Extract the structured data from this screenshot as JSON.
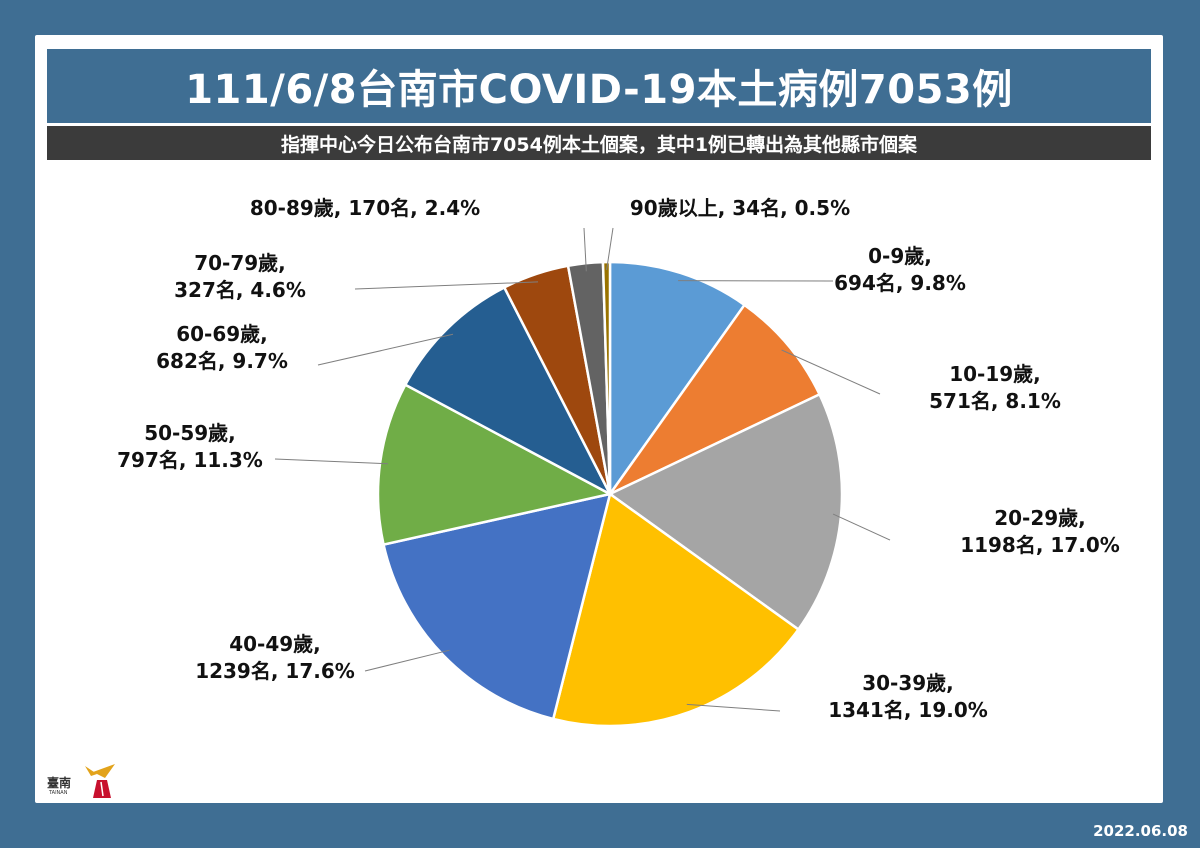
{
  "header": {
    "title": "111/6/8台南市COVID-19本土病例7053例",
    "subtitle": "指揮中心今日公布台南市7054例本土個案，其中1例已轉出為其他縣市個案"
  },
  "logo": {
    "text": "臺南",
    "sub": "TAINAN"
  },
  "footer": {
    "date": "2022.06.08"
  },
  "chart_data": {
    "type": "pie",
    "start_angle": "12 o'clock, clockwise",
    "slices": [
      {
        "label": "0-9歲",
        "count_text": "694名",
        "pct_text": "9.8%",
        "value": 694,
        "color": "#5b9bd5"
      },
      {
        "label": "10-19歲",
        "count_text": "571名",
        "pct_text": "8.1%",
        "value": 571,
        "color": "#ed7d31"
      },
      {
        "label": "20-29歲",
        "count_text": "1198名",
        "pct_text": "17.0%",
        "value": 1198,
        "color": "#a5a5a5"
      },
      {
        "label": "30-39歲",
        "count_text": "1341名",
        "pct_text": "19.0%",
        "value": 1341,
        "color": "#ffc000"
      },
      {
        "label": "40-49歲",
        "count_text": "1239名",
        "pct_text": "17.6%",
        "value": 1239,
        "color": "#4472c4"
      },
      {
        "label": "50-59歲",
        "count_text": "797名",
        "pct_text": "11.3%",
        "value": 797,
        "color": "#70ad47"
      },
      {
        "label": "60-69歲",
        "count_text": "682名",
        "pct_text": "9.7%",
        "value": 682,
        "color": "#255e91"
      },
      {
        "label": "70-79歲",
        "count_text": "327名",
        "pct_text": "4.6%",
        "value": 327,
        "color": "#9e480e"
      },
      {
        "label": "80-89歲",
        "count_text": "170名",
        "pct_text": "2.4%",
        "value": 170,
        "color": "#636363"
      },
      {
        "label": "90歲以上",
        "count_text": "34名",
        "pct_text": "0.5%",
        "value": 34,
        "color": "#997300"
      }
    ]
  }
}
